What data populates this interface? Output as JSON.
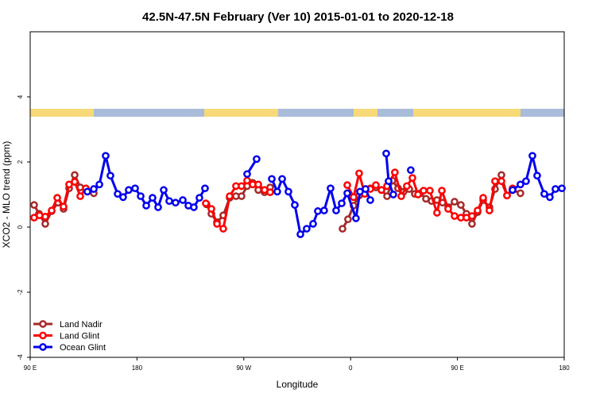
{
  "chart_data": {
    "type": "line",
    "title": "42.5N-47.5N February (Ver 10)   2015-01-01 to 2020-12-18",
    "x_label": "Longitude",
    "y_label": "XCO2 - MLO trend (ppm)",
    "xlim": [
      90,
      540
    ],
    "xticks": [
      {
        "value": 90,
        "label": "90 E"
      },
      180,
      {
        "value": 270,
        "label": "90 W"
      },
      {
        "value": 360,
        "label": "0"
      },
      {
        "value": 450,
        "label": "90 E"
      },
      {
        "value": 540,
        "label": "180"
      }
    ],
    "ylim": [
      -4,
      6
    ],
    "yticks": [
      -4,
      -2,
      0,
      2,
      4
    ],
    "legend": "bottom-left",
    "series": [
      {
        "name": "Land Nadir",
        "color": "#a52a2a",
        "x": [
          93.3,
          97.4,
          102.7,
          108.1,
          113.4,
          118.1,
          122.8,
          127.5,
          132.2,
          138.2,
          143.6,
          null,
          238.6,
          242.7,
          247.4,
          252.7,
          258.1,
          263.4,
          268.1,
          272.8,
          277.5,
          282.2,
          287.5,
          292.2,
          null,
          353.2,
          357.8,
          362.5,
          367.2,
          371.9,
          376.6,
          381.3,
          386,
          390.7,
          395.3,
          400,
          404.7,
          409.4,
          414.1,
          418.8,
          423.5,
          428.2,
          432.8,
          437.5,
          442.2,
          447.6,
          452.9,
          457.6,
          462.3,
          467,
          471.7,
          477,
          481.7,
          487.1,
          491.8,
          496.5,
          503.1
        ],
        "values": [
          0.68,
          0.41,
          0.1,
          0.49,
          0.75,
          0.56,
          1.19,
          1.6,
          1.22,
          1.09,
          1.04,
          null,
          0.7,
          0.41,
          0.15,
          0.36,
          0.9,
          0.95,
          0.95,
          1.26,
          1.36,
          1.14,
          1.07,
          1.22,
          null,
          -0.05,
          0.24,
          0.66,
          0.97,
          1.09,
          1.19,
          1.22,
          1.14,
          0.95,
          1.43,
          1.19,
          1.09,
          1.17,
          1.02,
          1.04,
          0.87,
          0.8,
          0.83,
          0.75,
          0.61,
          0.78,
          0.68,
          0.41,
          0.1,
          0.46,
          0.83,
          0.61,
          1.17,
          1.6,
          0.97,
          1.14,
          1.04
        ]
      },
      {
        "name": "Land Glint",
        "color": "#ff0000",
        "x": [
          93.3,
          97.9,
          102.7,
          108.1,
          112.8,
          118.1,
          122.8,
          127.5,
          132.2,
          136.9,
          null,
          238,
          242.7,
          247.4,
          252.7,
          258.1,
          263.4,
          268.1,
          272.8,
          277.5,
          282.2,
          287.5,
          292.2,
          null,
          357.2,
          362.5,
          367.2,
          371.9,
          376.6,
          381.3,
          386,
          390.7,
          397.3,
          402.7,
          407.4,
          412.1,
          416.8,
          421.5,
          426.8,
          432.8,
          436.9,
          442.2,
          447.6,
          452.9,
          457.6,
          462.3,
          467,
          471.7,
          477,
          481.7,
          487.1,
          491.8,
          496.5
        ],
        "values": [
          0.29,
          0.36,
          0.32,
          0.51,
          0.9,
          0.63,
          1.31,
          1.39,
          0.95,
          1.19,
          null,
          0.73,
          0.56,
          0.1,
          -0.05,
          0.95,
          1.26,
          1.26,
          1.43,
          1.31,
          1.31,
          1.14,
          1.07,
          null,
          1.29,
          0.92,
          1.65,
          1.02,
          1.17,
          1.29,
          1.14,
          1.26,
          1.68,
          0.95,
          1.26,
          1.51,
          1.0,
          1.12,
          1.12,
          0.44,
          1.12,
          0.56,
          0.34,
          0.29,
          0.29,
          0.34,
          0.51,
          0.9,
          0.51,
          1.41,
          1.41,
          0.97,
          1.19
        ]
      },
      {
        "name": "Ocean Glint",
        "color": "#0000ee",
        "x": [
          138.2,
          143.6,
          148.3,
          153.6,
          157.6,
          163.7,
          168.3,
          173,
          178.4,
          183.1,
          187.8,
          193.1,
          197.8,
          202.5,
          207.2,
          212.5,
          218.6,
          223.3,
          227.9,
          232.6,
          237.3,
          null,
          272.8,
          280.8,
          null,
          293.6,
          298.2,
          302.3,
          307.6,
          313,
          317.7,
          323,
          328.4,
          332.4,
          337.7,
          343.1,
          347.8,
          352.5,
          357.2,
          364.5,
          367.9,
          372.6,
          376.6,
          null,
          390,
          392,
          396,
          null,
          410.7,
          null,
          496.5,
          503.1,
          507.8,
          513.2,
          517.2,
          523.2,
          527.9,
          532.6,
          538
        ],
        "values": [
          1.09,
          1.17,
          1.31,
          2.19,
          1.58,
          1.02,
          0.92,
          1.14,
          1.19,
          0.95,
          0.66,
          0.9,
          0.61,
          1.14,
          0.8,
          0.75,
          0.83,
          0.66,
          0.61,
          0.9,
          1.19,
          null,
          1.63,
          2.09,
          null,
          1.48,
          1.09,
          1.48,
          1.09,
          0.68,
          -0.22,
          -0.05,
          0.1,
          0.49,
          0.51,
          1.19,
          0.51,
          0.73,
          1.04,
          0.27,
          1.09,
          1.17,
          0.83,
          null,
          2.26,
          1.41,
          1.0,
          null,
          1.75,
          null,
          1.14,
          1.31,
          1.41,
          2.19,
          1.58,
          1.02,
          0.92,
          1.17,
          1.19
        ]
      }
    ]
  }
}
